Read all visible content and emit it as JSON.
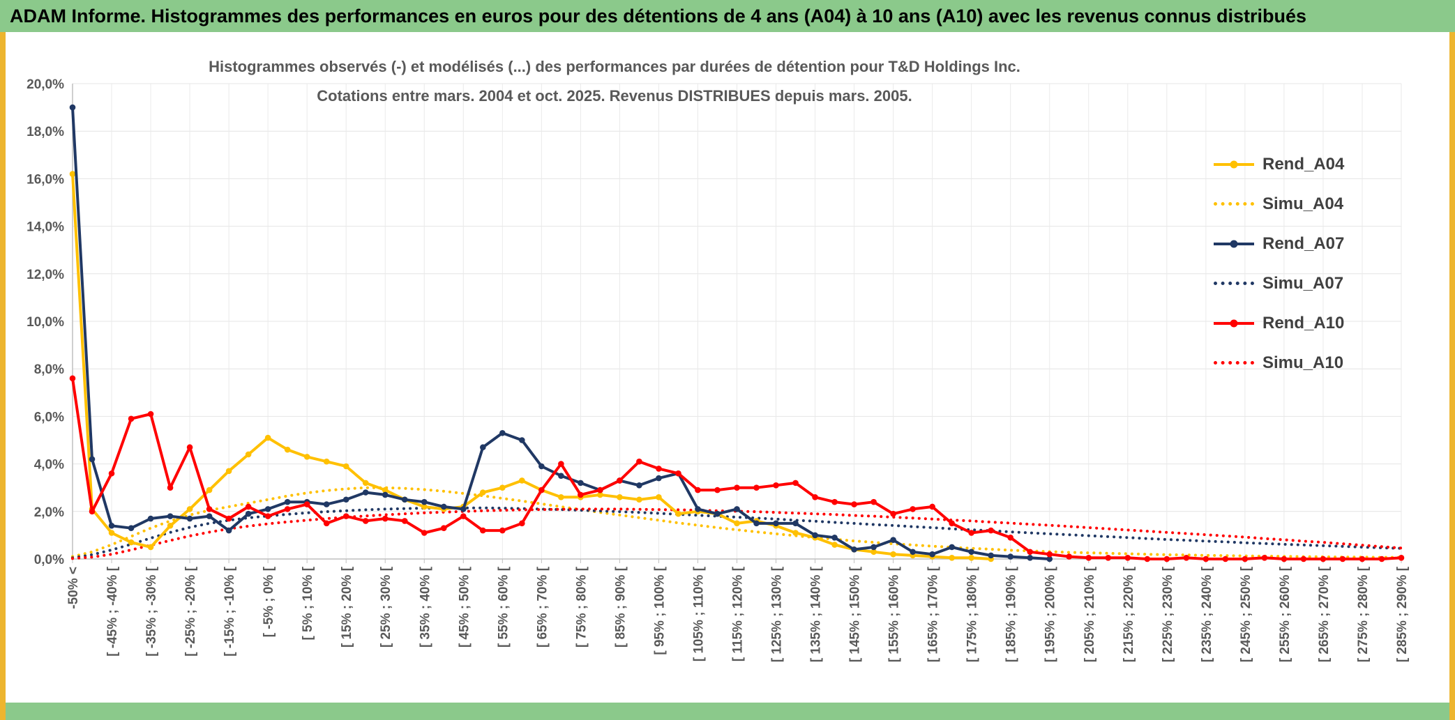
{
  "header": {
    "title": "ADAM Informe. Histogrammes des performances en euros pour des détentions de 4 ans (A04) à 10 ans (A10) avec les revenus connus distribués"
  },
  "chart": {
    "title_line1": "Histogrammes observés (-) et modélisés (...) des performances par durées de détention pour T&D Holdings Inc.",
    "title_line2": "Cotations entre mars. 2004 et oct. 2025. Revenus DISTRIBUES depuis mars. 2005."
  },
  "chart_data": {
    "type": "line",
    "title": "Histogrammes observés (-) et modélisés (...) des performances par durées de détention pour T&D Holdings Inc.",
    "subtitle": "Cotations entre mars. 2004 et oct. 2025. Revenus DISTRIBUES depuis mars. 2005.",
    "grid": true,
    "legend_position": "right-inside",
    "y_axis": {
      "min": 0,
      "max": 20,
      "step": 2,
      "unit": "%",
      "tick_labels": [
        "0,0%",
        "2,0%",
        "4,0%",
        "6,0%",
        "8,0%",
        "10,0%",
        "12,0%",
        "14,0%",
        "16,0%",
        "18,0%",
        "20,0%"
      ]
    },
    "x_axis": {
      "n_bins": 69,
      "bin_width_pct": 5,
      "label_every_n_bins": 2,
      "labels_visible": [
        "-50% <",
        "[ -45% ; -40% [",
        "[ -35% ; -30% [",
        "[ -25% ; -20% [",
        "[ -15% ; -10% [",
        "[ -5% ; 0% [",
        "[ 5% ; 10% [",
        "[ 15% ; 20% [",
        "[ 25% ; 30% [",
        "[ 35% ; 40% [",
        "[ 45% ; 50% [",
        "[ 55% ; 60% [",
        "[ 65% ; 70% [",
        "[ 75% ; 80% [",
        "[ 85% ; 90% [",
        "[ 95% ; 100% [",
        "[ 105% ; 110% [",
        "[ 115% ; 120% [",
        "[ 125% ; 130% [",
        "[ 135% ; 140% [",
        "[ 145% ; 150% [",
        "[ 155% ; 160% [",
        "[ 165% ; 170% [",
        "[ 175% ; 180% [",
        "[ 185% ; 190% [",
        "[ 195% ; 200% [",
        "[ 205% ; 210% [",
        "[ 215% ; 220% [",
        "[ 225% ; 230% [",
        "[ 235% ; 240% [",
        "[ 245% ; 250% [",
        "[ 255% ; 260% [",
        "[ 265% ; 270% [",
        "[ 275% ; 280% [",
        "[ 285% ; 290% ["
      ]
    },
    "series": [
      {
        "name": "Rend_A04",
        "style": "solid",
        "marker": "circle",
        "color": "#FFC000",
        "values": [
          16.2,
          2.1,
          1.1,
          0.7,
          0.5,
          1.4,
          2.1,
          2.9,
          3.7,
          4.4,
          5.1,
          4.6,
          4.3,
          4.1,
          3.9,
          3.2,
          2.9,
          2.5,
          2.2,
          2.1,
          2.2,
          2.8,
          3.0,
          3.3,
          2.9,
          2.6,
          2.6,
          2.7,
          2.6,
          2.5,
          2.6,
          1.9,
          2.0,
          1.9,
          1.5,
          1.6,
          1.4,
          1.1,
          0.9,
          0.6,
          0.4,
          0.3,
          0.2,
          0.15,
          0.1,
          0.05,
          0.05,
          0,
          null,
          null,
          null,
          null,
          null,
          null,
          null,
          null,
          null,
          null,
          null,
          null,
          null,
          null,
          null,
          null,
          null,
          null,
          null,
          null,
          null
        ]
      },
      {
        "name": "Simu_A04",
        "style": "dotted",
        "marker": "none",
        "color": "#FFC000",
        "values": [
          0.1,
          0.3,
          0.6,
          0.95,
          1.3,
          1.6,
          1.85,
          2.05,
          2.2,
          2.35,
          2.5,
          2.65,
          2.78,
          2.88,
          2.95,
          3.0,
          3.0,
          2.97,
          2.92,
          2.85,
          2.76,
          2.66,
          2.55,
          2.44,
          2.32,
          2.2,
          2.08,
          1.96,
          1.85,
          1.74,
          1.63,
          1.52,
          1.42,
          1.32,
          1.23,
          1.14,
          1.06,
          0.98,
          0.9,
          0.83,
          0.76,
          0.7,
          0.64,
          0.59,
          0.54,
          0.49,
          0.45,
          0.41,
          0.37,
          0.34,
          0.31,
          0.28,
          0.26,
          0.24,
          0.22,
          0.2,
          0.18,
          0.17,
          0.15,
          0.14,
          0.13,
          0.12,
          0.11,
          0.1,
          0.09,
          0.08,
          0.08,
          0.07,
          0.07
        ]
      },
      {
        "name": "Rend_A07",
        "style": "solid",
        "marker": "circle",
        "color": "#203864",
        "values": [
          19.0,
          4.2,
          1.4,
          1.3,
          1.7,
          1.8,
          1.7,
          1.8,
          1.2,
          1.9,
          2.1,
          2.4,
          2.4,
          2.3,
          2.5,
          2.8,
          2.7,
          2.5,
          2.4,
          2.2,
          2.1,
          4.7,
          5.3,
          5.0,
          3.9,
          3.5,
          3.2,
          2.9,
          3.3,
          3.1,
          3.4,
          3.6,
          2.1,
          1.9,
          2.1,
          1.5,
          1.5,
          1.5,
          1.0,
          0.9,
          0.4,
          0.5,
          0.8,
          0.3,
          0.2,
          0.5,
          0.3,
          0.15,
          0.1,
          0.05,
          0,
          null,
          null,
          null,
          null,
          null,
          null,
          null,
          null,
          null,
          null,
          null,
          null,
          null,
          null,
          null,
          null,
          null,
          null
        ]
      },
      {
        "name": "Simu_A07",
        "style": "dotted",
        "marker": "none",
        "color": "#203864",
        "values": [
          0.05,
          0.18,
          0.38,
          0.62,
          0.88,
          1.12,
          1.33,
          1.5,
          1.63,
          1.73,
          1.81,
          1.88,
          1.94,
          1.99,
          2.03,
          2.07,
          2.1,
          2.12,
          2.14,
          2.15,
          2.15,
          2.15,
          2.14,
          2.12,
          2.1,
          2.08,
          2.05,
          2.02,
          1.99,
          1.96,
          1.92,
          1.88,
          1.84,
          1.8,
          1.76,
          1.72,
          1.68,
          1.63,
          1.59,
          1.54,
          1.5,
          1.45,
          1.41,
          1.36,
          1.32,
          1.27,
          1.23,
          1.19,
          1.14,
          1.1,
          1.06,
          1.02,
          0.98,
          0.94,
          0.9,
          0.86,
          0.82,
          0.79,
          0.75,
          0.72,
          0.68,
          0.65,
          0.62,
          0.59,
          0.56,
          0.53,
          0.5,
          0.47,
          0.45
        ]
      },
      {
        "name": "Rend_A10",
        "style": "solid",
        "marker": "circle",
        "color": "#FF0000",
        "values": [
          7.6,
          2.0,
          3.6,
          5.9,
          6.1,
          3.0,
          4.7,
          2.1,
          1.7,
          2.2,
          1.8,
          2.1,
          2.3,
          1.5,
          1.8,
          1.6,
          1.7,
          1.6,
          1.1,
          1.3,
          1.8,
          1.2,
          1.2,
          1.5,
          2.9,
          4.0,
          2.7,
          2.9,
          3.3,
          4.1,
          3.8,
          3.6,
          2.9,
          2.9,
          3.0,
          3.0,
          3.1,
          3.2,
          2.6,
          2.4,
          2.3,
          2.4,
          1.9,
          2.1,
          2.2,
          1.5,
          1.1,
          1.2,
          0.9,
          0.3,
          0.2,
          0.1,
          0.05,
          0.05,
          0.05,
          0,
          0,
          0.05,
          0,
          0,
          0,
          0.05,
          0,
          0,
          0,
          0,
          0,
          0,
          0.05
        ]
      },
      {
        "name": "Simu_A10",
        "style": "dotted",
        "marker": "none",
        "color": "#FF0000",
        "values": [
          0.02,
          0.08,
          0.2,
          0.38,
          0.58,
          0.78,
          0.97,
          1.13,
          1.27,
          1.38,
          1.48,
          1.56,
          1.63,
          1.7,
          1.76,
          1.81,
          1.86,
          1.9,
          1.94,
          1.97,
          2.0,
          2.03,
          2.05,
          2.07,
          2.08,
          2.09,
          2.1,
          2.1,
          2.1,
          2.09,
          2.08,
          2.07,
          2.05,
          2.03,
          2.01,
          1.99,
          1.96,
          1.93,
          1.9,
          1.87,
          1.83,
          1.8,
          1.76,
          1.72,
          1.68,
          1.64,
          1.6,
          1.55,
          1.51,
          1.46,
          1.42,
          1.37,
          1.32,
          1.27,
          1.22,
          1.17,
          1.12,
          1.07,
          1.02,
          0.97,
          0.92,
          0.86,
          0.81,
          0.75,
          0.7,
          0.64,
          0.58,
          0.52,
          0.46
        ]
      }
    ],
    "colors": {
      "gold": "#FFC000",
      "navy": "#203864",
      "red": "#FF0000",
      "grid": "#E4E4E4",
      "axis": "#BFBFBF",
      "axis_text": "#595959",
      "header_green": "#8BC98B",
      "edge_yellow": "#EDB52F"
    }
  }
}
